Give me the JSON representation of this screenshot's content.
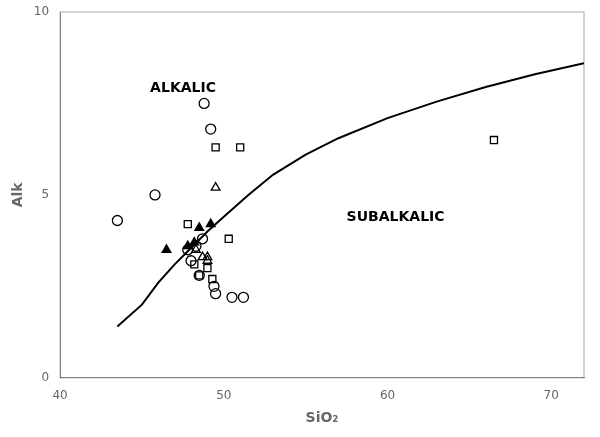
{
  "chart_data": {
    "type": "scatter",
    "xlabel": "SiO₂",
    "ylabel": "Alk",
    "xlim": [
      40,
      72
    ],
    "ylim": [
      0,
      10
    ],
    "xticks": [
      40,
      50,
      60,
      70
    ],
    "yticks": [
      0,
      5,
      10
    ],
    "grid": false,
    "series": [
      {
        "type": "line",
        "color": "#000000",
        "x": [
          43.5,
          45.0,
          46.0,
          47.0,
          48.0,
          49.0,
          50.0,
          51.5,
          53.0,
          55.0,
          57.0,
          60.0,
          63.0,
          66.0,
          69.0,
          72.0
        ],
        "values": [
          1.4,
          2.0,
          2.6,
          3.1,
          3.55,
          4.0,
          4.4,
          5.0,
          5.55,
          6.1,
          6.55,
          7.1,
          7.55,
          7.95,
          8.3,
          8.6
        ]
      },
      {
        "type": "scatter",
        "marker": "circle-open",
        "color": "#000000",
        "x": [
          43.5,
          45.8,
          47.8,
          48.0,
          48.3,
          48.5,
          48.7,
          48.8,
          49.2,
          49.4,
          49.5,
          50.5,
          51.2
        ],
        "values": [
          4.3,
          5.0,
          3.5,
          3.2,
          3.6,
          2.8,
          3.8,
          7.5,
          6.8,
          2.5,
          2.3,
          2.2,
          2.2
        ]
      },
      {
        "type": "scatter",
        "marker": "square-open",
        "color": "#000000",
        "x": [
          47.8,
          48.2,
          48.5,
          49.0,
          49.3,
          49.5,
          50.3,
          51.0,
          66.5
        ],
        "values": [
          4.2,
          3.1,
          2.8,
          3.0,
          2.7,
          6.3,
          3.8,
          6.3,
          6.5
        ]
      },
      {
        "type": "scatter",
        "marker": "triangle-open",
        "color": "#000000",
        "x": [
          48.3,
          48.7,
          49.0,
          49.0,
          49.5
        ],
        "values": [
          3.5,
          3.3,
          3.2,
          3.3,
          5.2
        ]
      },
      {
        "type": "scatter",
        "marker": "triangle-filled",
        "color": "#000000",
        "x": [
          46.5,
          47.8,
          48.2,
          48.5,
          49.2
        ],
        "values": [
          3.5,
          3.6,
          3.7,
          4.1,
          4.2
        ]
      }
    ],
    "annotations": [
      {
        "text": "ALKALIC",
        "x": 45.5,
        "y": 7.8,
        "color": "#000000"
      },
      {
        "text": "SUBALKALIC",
        "x": 57.5,
        "y": 4.3,
        "color": "#000000"
      }
    ]
  }
}
